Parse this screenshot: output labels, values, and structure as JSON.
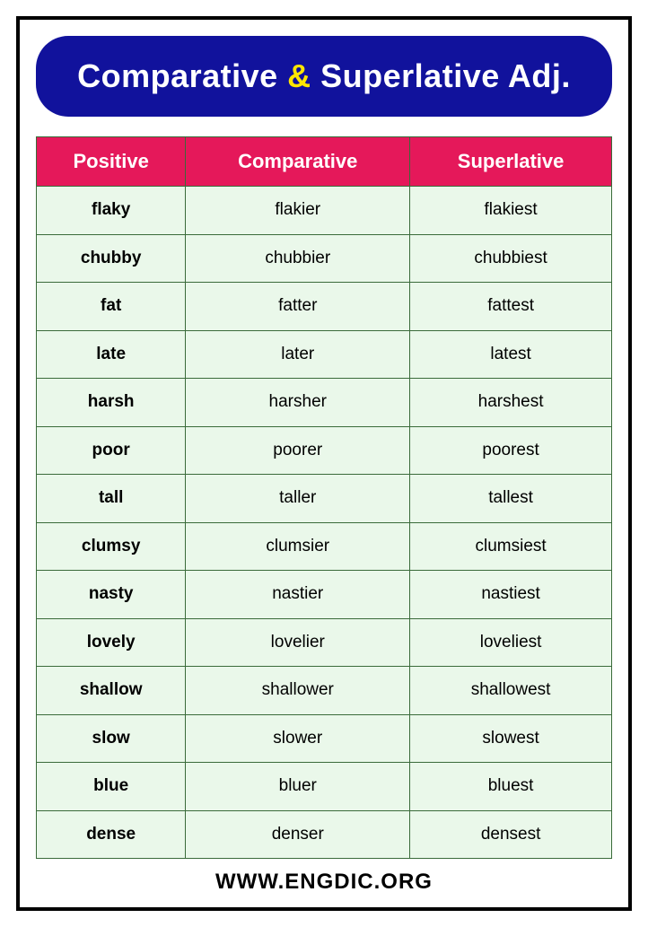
{
  "banner": {
    "part1": "Comparative ",
    "amp": "&",
    "part2": " Superlative Adj.",
    "bg_color": "#11129c",
    "text_color": "#ffffff",
    "accent_color": "#ffe600",
    "fontsize": 36,
    "radius": 36
  },
  "table": {
    "columns": [
      "Positive",
      "Comparative",
      "Superlative"
    ],
    "header_bg": "#e5185a",
    "header_color": "#ffffff",
    "header_fontsize": 22,
    "cell_bg": "#eaf8ea",
    "cell_color": "#000000",
    "cell_fontsize": 19,
    "border_color": "#3a6b3a",
    "rows": [
      [
        "flaky",
        "flakier",
        "flakiest"
      ],
      [
        "chubby",
        "chubbier",
        "chubbiest"
      ],
      [
        "fat",
        "fatter",
        "fattest"
      ],
      [
        "late",
        "later",
        "latest"
      ],
      [
        "harsh",
        "harsher",
        "harshest"
      ],
      [
        "poor",
        "poorer",
        "poorest"
      ],
      [
        "tall",
        "taller",
        "tallest"
      ],
      [
        "clumsy",
        "clumsier",
        "clumsiest"
      ],
      [
        "nasty",
        "nastier",
        "nastiest"
      ],
      [
        "lovely",
        "lovelier",
        "loveliest"
      ],
      [
        "shallow",
        "shallower",
        "shallowest"
      ],
      [
        "slow",
        "slower",
        "slowest"
      ],
      [
        "blue",
        "bluer",
        "bluest"
      ],
      [
        "dense",
        "denser",
        "densest"
      ]
    ]
  },
  "footer": {
    "text": "WWW.ENGDIC.ORG",
    "fontsize": 24
  }
}
